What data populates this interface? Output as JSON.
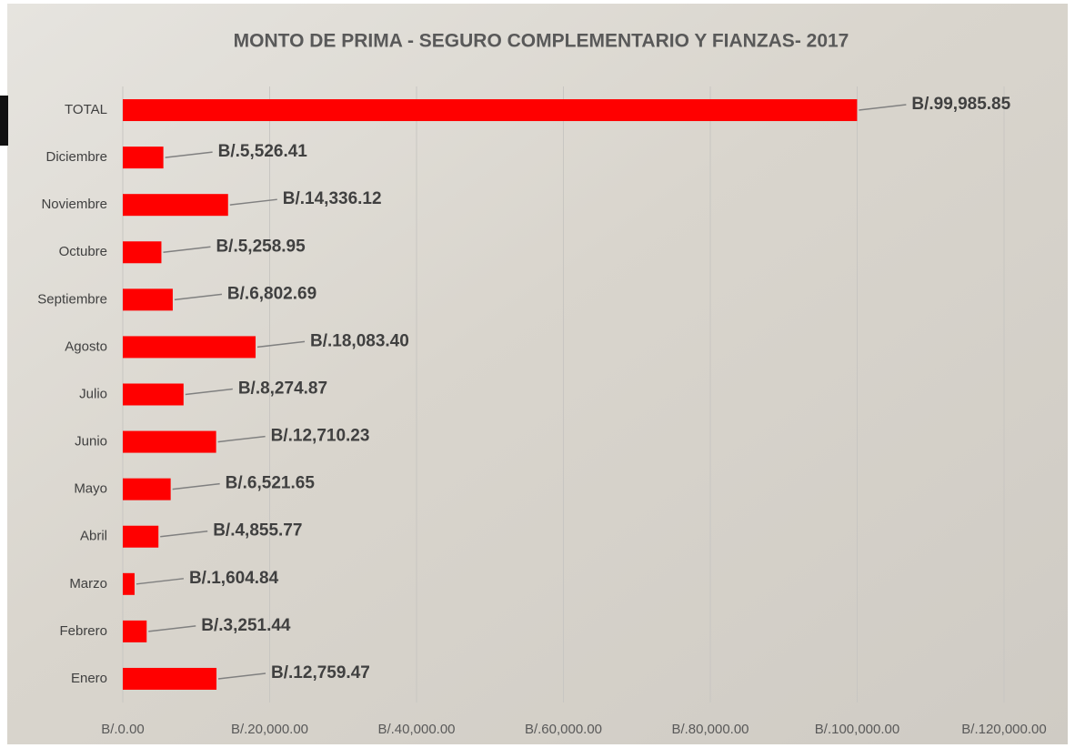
{
  "chart_data": {
    "type": "barh",
    "title": "MONTO DE PRIMA - SEGURO COMPLEMENTARIO Y FIANZAS- 2017",
    "categories": [
      "TOTAL",
      "Diciembre",
      "Noviembre",
      "Octubre",
      "Septiembre",
      "Agosto",
      "Julio",
      "Junio",
      "Mayo",
      "Abril",
      "Marzo",
      "Febrero",
      "Enero"
    ],
    "values": [
      99985.85,
      5526.41,
      14336.12,
      5258.95,
      6802.69,
      18083.4,
      8274.87,
      12710.23,
      6521.65,
      4855.77,
      1604.84,
      3251.44,
      12759.47
    ],
    "value_labels": [
      "B/.99,985.85",
      "B/.5,526.41",
      "B/.14,336.12",
      "B/.5,258.95",
      "B/.6,802.69",
      "B/.18,083.40",
      "B/.8,274.87",
      "B/.12,710.23",
      "B/.6,521.65",
      "B/.4,855.77",
      "B/.1,604.84",
      "B/.3,251.44",
      "B/.12,759.47"
    ],
    "color": "#ff0000",
    "xlim": [
      0,
      120000
    ],
    "xticks": [
      {
        "value": 0,
        "label": "B/.0.00"
      },
      {
        "value": 20000,
        "label": "B/.20,000.00"
      },
      {
        "value": 40000,
        "label": "B/.40,000.00"
      },
      {
        "value": 60000,
        "label": "B/.60,000.00"
      },
      {
        "value": 80000,
        "label": "B/.80,000.00"
      },
      {
        "value": 100000,
        "label": "B/.100,000.00"
      },
      {
        "value": 120000,
        "label": "B/.120,000.00"
      }
    ],
    "grid": true
  }
}
